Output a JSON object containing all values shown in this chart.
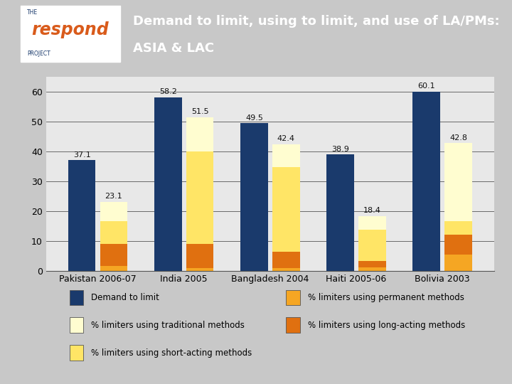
{
  "title_line1": "Demand to limit, using to limit, and use of LA/PMs:",
  "title_line2": "ASIA & LAC",
  "categories": [
    "Pakistan 2006-07",
    "India 2005",
    "Bangladesh 2004",
    "Haiti 2005-06",
    "Bolivia 2003"
  ],
  "demand_to_limit": [
    37.1,
    58.2,
    49.5,
    38.9,
    60.1
  ],
  "stacked_totals": [
    23.1,
    51.5,
    42.4,
    18.4,
    42.8
  ],
  "permanent": [
    1.5,
    1.0,
    0.8,
    1.2,
    5.5
  ],
  "long_acting": [
    7.5,
    8.0,
    5.5,
    2.0,
    6.5
  ],
  "short_acting": [
    7.5,
    31.0,
    28.5,
    10.5,
    4.5
  ],
  "traditional": [
    6.6,
    11.5,
    7.6,
    4.7,
    26.3
  ],
  "colors": {
    "demand_to_limit": "#1A3A6C",
    "permanent": "#F5A623",
    "long_acting": "#E07010",
    "short_acting": "#FFE566",
    "traditional": "#FFFDD0"
  },
  "header_bg": "#D95B1B",
  "chart_bg": "#E8E8E8",
  "fig_bg": "#C8C8C8",
  "ylim": [
    0,
    65
  ],
  "yticks": [
    0,
    10,
    20,
    30,
    40,
    50,
    60
  ]
}
